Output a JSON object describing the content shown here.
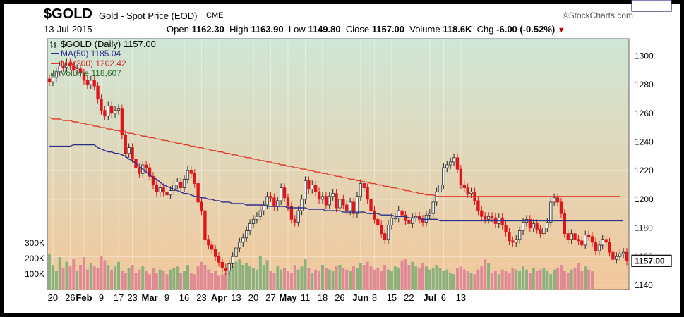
{
  "header": {
    "symbol": "$GOLD",
    "description": "Gold - Spot Price (EOD)",
    "exchange": "CME",
    "brand": "©StockCharts.com",
    "date": "13-Jul-2015",
    "open_label": "Open",
    "open": "1162.30",
    "high_label": "High",
    "high": "1163.90",
    "low_label": "Low",
    "low": "1149.80",
    "close_label": "Close",
    "close": "1157.00",
    "volume_label": "Volume",
    "volume": "118.6K",
    "chg_label": "Chg",
    "chg": "-6.00 (-0.52%)"
  },
  "legend": {
    "price": "$GOLD (Daily) 1157.00",
    "ma50": "MA(50) 1185.04",
    "ma200": "MA(200) 1202.42",
    "volume": "Volume 118,607"
  },
  "colors": {
    "up": "#2a2a2a",
    "down": "#e0151b",
    "ma50": "#2b2f8c",
    "ma200": "#e03c2c",
    "vol_up": "#8fb07a",
    "vol_down": "#e08a92",
    "bg_top": "#cfe6d6",
    "bg_bottom": "#f3c79a"
  },
  "chart_data": {
    "type": "candlestick",
    "price_axis": {
      "ticks": [
        1140,
        1160,
        1180,
        1200,
        1220,
        1240,
        1260,
        1280,
        1300
      ],
      "ylim": [
        1137,
        1312
      ]
    },
    "price_labels": {
      "ma200": "1202.42",
      "ma50": "1185.04",
      "last": "1157.00"
    },
    "volume_axis": {
      "ticks": [
        100000,
        200000,
        300000
      ],
      "tick_labels": [
        "100K",
        "200K",
        "300K"
      ],
      "ymax": 460000
    },
    "x_ticks": [
      "20",
      "26",
      "Feb",
      "9",
      "17",
      "23",
      "Mar",
      "9",
      "16",
      "23",
      "Apr",
      "13",
      "20",
      "27",
      "May",
      "11",
      "18",
      "26",
      "Jun",
      "8",
      "15",
      "22",
      "Jul",
      "6",
      "13"
    ],
    "x_tick_bold": [
      "Feb",
      "Mar",
      "Apr",
      "May",
      "Jun",
      "Jul"
    ],
    "x_tick_index": [
      1,
      6,
      10,
      15,
      20,
      24,
      29,
      34,
      39,
      44,
      49,
      54,
      59,
      64,
      69,
      74,
      79,
      84,
      90,
      94,
      99,
      104,
      110,
      114,
      119
    ],
    "closes": [
      1282,
      1285,
      1289,
      1293,
      1292,
      1295,
      1293,
      1290,
      1291,
      1288,
      1283,
      1280,
      1283,
      1279,
      1270,
      1262,
      1258,
      1265,
      1260,
      1262,
      1263,
      1245,
      1232,
      1236,
      1228,
      1222,
      1218,
      1224,
      1222,
      1216,
      1210,
      1205,
      1208,
      1205,
      1203,
      1206,
      1210,
      1212,
      1208,
      1214,
      1220,
      1218,
      1211,
      1198,
      1192,
      1172,
      1168,
      1165,
      1160,
      1156,
      1152,
      1150,
      1155,
      1160,
      1166,
      1170,
      1173,
      1178,
      1183,
      1186,
      1188,
      1192,
      1196,
      1202,
      1201,
      1195,
      1199,
      1208,
      1201,
      1195,
      1186,
      1184,
      1192,
      1200,
      1213,
      1207,
      1210,
      1205,
      1200,
      1202,
      1196,
      1202,
      1204,
      1194,
      1200,
      1196,
      1192,
      1198,
      1190,
      1202,
      1211,
      1208,
      1200,
      1192,
      1186,
      1182,
      1176,
      1172,
      1182,
      1187,
      1187,
      1192,
      1189,
      1185,
      1183,
      1187,
      1188,
      1186,
      1184,
      1189,
      1190,
      1198,
      1205,
      1210,
      1222,
      1224,
      1226,
      1229,
      1221,
      1210,
      1208,
      1204,
      1205,
      1199,
      1192,
      1188,
      1186,
      1188,
      1187,
      1183,
      1187,
      1182,
      1177,
      1171,
      1170,
      1172,
      1178,
      1184,
      1186,
      1180,
      1183,
      1179,
      1176,
      1180,
      1184,
      1198,
      1201,
      1198,
      1190,
      1176,
      1172,
      1176,
      1172,
      1171,
      1168,
      1175,
      1174,
      1170,
      1164,
      1168,
      1172,
      1170,
      1163,
      1158,
      1160,
      1162,
      1163,
      1157
    ],
    "ma50": [
      1237,
      1237,
      1237,
      1237,
      1237,
      1237,
      1237,
      1238,
      1238,
      1238,
      1238,
      1238,
      1238,
      1238,
      1236,
      1235,
      1234,
      1233,
      1233,
      1232,
      1232,
      1231,
      1230,
      1228,
      1227,
      1225,
      1223,
      1221,
      1219,
      1217,
      1215,
      1214,
      1212,
      1210,
      1209,
      1208,
      1207,
      1206,
      1205,
      1204,
      1204,
      1203,
      1202,
      1202,
      1201,
      1201,
      1200,
      1200,
      1199,
      1199,
      1198,
      1198,
      1198,
      1197,
      1197,
      1197,
      1197,
      1196,
      1196,
      1196,
      1196,
      1196,
      1196,
      1195,
      1195,
      1195,
      1195,
      1195,
      1195,
      1194,
      1194,
      1194,
      1194,
      1194,
      1194,
      1193,
      1193,
      1193,
      1193,
      1193,
      1192,
      1192,
      1192,
      1192,
      1192,
      1191,
      1191,
      1191,
      1191,
      1191,
      1191,
      1191,
      1190,
      1190,
      1190,
      1190,
      1189,
      1189,
      1189,
      1189,
      1188,
      1188,
      1188,
      1188,
      1187,
      1187,
      1187,
      1187,
      1186,
      1186,
      1186,
      1186,
      1186,
      1185,
      1185,
      1185,
      1185,
      1185,
      1185,
      1185,
      1185,
      1185,
      1185,
      1185,
      1185,
      1185,
      1185,
      1185,
      1185,
      1185,
      1185,
      1185,
      1185,
      1185,
      1185,
      1185,
      1185,
      1185,
      1185,
      1185,
      1185,
      1185,
      1185,
      1185,
      1185,
      1185,
      1185,
      1185,
      1185,
      1185,
      1185,
      1185,
      1185,
      1185,
      1185,
      1185,
      1185,
      1185,
      1185,
      1185,
      1185,
      1185,
      1185,
      1185,
      1185,
      1185,
      1185
    ],
    "ma200": [
      1257,
      1256,
      1256,
      1256,
      1255,
      1255,
      1255,
      1254,
      1254,
      1253,
      1253,
      1252,
      1252,
      1251,
      1251,
      1250,
      1250,
      1249,
      1249,
      1248,
      1248,
      1247,
      1247,
      1246,
      1246,
      1245,
      1245,
      1244,
      1244,
      1243,
      1243,
      1242,
      1242,
      1241,
      1241,
      1240,
      1240,
      1239,
      1239,
      1238,
      1238,
      1237,
      1237,
      1236,
      1236,
      1235,
      1235,
      1234,
      1234,
      1233,
      1233,
      1232,
      1232,
      1231,
      1231,
      1230,
      1230,
      1229,
      1229,
      1228,
      1228,
      1227,
      1227,
      1226,
      1226,
      1225,
      1225,
      1224,
      1224,
      1223,
      1223,
      1222,
      1222,
      1221,
      1221,
      1220,
      1220,
      1219,
      1219,
      1218,
      1218,
      1217,
      1217,
      1216,
      1216,
      1215,
      1215,
      1214,
      1214,
      1213,
      1213,
      1212,
      1212,
      1211,
      1211,
      1210,
      1210,
      1209,
      1209,
      1208,
      1208,
      1207,
      1207,
      1206,
      1206,
      1205,
      1205,
      1204,
      1204,
      1203,
      1203,
      1203,
      1202,
      1202,
      1202,
      1202,
      1202,
      1202,
      1202,
      1202,
      1202,
      1202,
      1202,
      1202,
      1202,
      1202,
      1202,
      1202,
      1202,
      1202,
      1202,
      1202,
      1202,
      1202,
      1202,
      1202,
      1202,
      1202,
      1202,
      1202,
      1202,
      1202,
      1202,
      1202,
      1202,
      1202,
      1202,
      1202,
      1202,
      1202,
      1202,
      1202,
      1202,
      1202,
      1202,
      1202,
      1202,
      1202,
      1202,
      1202,
      1202,
      1202,
      1202,
      1202,
      1202,
      1202
    ],
    "volumes": [
      230000,
      160000,
      120000,
      210000,
      140000,
      180000,
      150000,
      200000,
      120000,
      160000,
      210000,
      130000,
      170000,
      150000,
      140000,
      220000,
      190000,
      160000,
      130000,
      150000,
      180000,
      120000,
      110000,
      140000,
      160000,
      110000,
      130000,
      150000,
      120000,
      100000,
      140000,
      110000,
      130000,
      120000,
      100000,
      130000,
      140000,
      150000,
      110000,
      120000,
      160000,
      110000,
      100000,
      150000,
      180000,
      160000,
      130000,
      110000,
      120000,
      90000,
      100000,
      110000,
      140000,
      150000,
      180000,
      200000,
      160000,
      170000,
      150000,
      140000,
      130000,
      220000,
      160000,
      190000,
      120000,
      110000,
      150000,
      130000,
      140000,
      120000,
      110000,
      160000,
      130000,
      150000,
      200000,
      140000,
      110000,
      130000,
      120000,
      160000,
      140000,
      130000,
      120000,
      150000,
      160000,
      140000,
      130000,
      120000,
      150000,
      140000,
      170000,
      160000,
      180000,
      150000,
      130000,
      140000,
      120000,
      160000,
      130000,
      120000,
      150000,
      140000,
      190000,
      200000,
      160000,
      180000,
      150000,
      140000,
      170000,
      150000,
      130000,
      140000,
      160000,
      140000,
      120000,
      130000,
      110000,
      100000,
      140000,
      150000,
      130000,
      120000,
      110000,
      100000,
      130000,
      150000,
      200000,
      170000,
      110000,
      120000,
      100000,
      130000,
      120000,
      110000,
      140000,
      130000,
      120000,
      150000,
      130000,
      110000,
      140000,
      120000,
      130000,
      140000,
      120000,
      100000,
      130000,
      140000,
      160000,
      120000,
      110000,
      130000,
      140000,
      170000,
      120000,
      150000,
      130000,
      118607
    ]
  }
}
